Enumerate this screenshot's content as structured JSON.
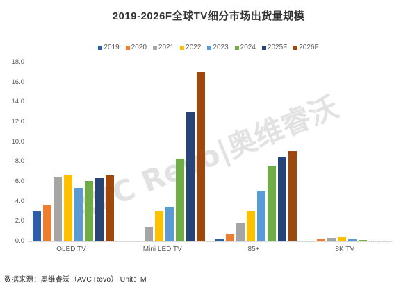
{
  "title": "2019-2026F全球TV细分市场出货量规模",
  "source": "数据来源：奥维睿沃（AVC Revo） Unit：M",
  "watermark": "AVC Revo|奥维睿沃",
  "chart_data": {
    "type": "bar",
    "title": "2019-2026F全球TV细分市场出货量规模",
    "xlabel": "",
    "ylabel": "",
    "unit": "M",
    "ylim": [
      0,
      18
    ],
    "yticks": [
      "0.0",
      "2.0",
      "4.0",
      "6.0",
      "8.0",
      "10.0",
      "12.0",
      "14.0",
      "16.0",
      "18.0"
    ],
    "grid": false,
    "legend_position": "top",
    "categories": [
      "OLED TV",
      "Mini LED TV",
      "85+",
      "8K TV"
    ],
    "series": [
      {
        "name": "2019",
        "color": "#2E5EAA",
        "values": [
          3.0,
          0,
          0.3,
          0.1
        ]
      },
      {
        "name": "2020",
        "color": "#ED7D31",
        "values": [
          3.7,
          0,
          0.8,
          0.3
        ]
      },
      {
        "name": "2021",
        "color": "#A5A5A5",
        "values": [
          6.5,
          1.5,
          1.8,
          0.35
        ]
      },
      {
        "name": "2022",
        "color": "#FFC000",
        "values": [
          6.7,
          3.0,
          3.1,
          0.4
        ]
      },
      {
        "name": "2023",
        "color": "#5B9BD5",
        "values": [
          5.4,
          3.5,
          5.0,
          0.2
        ]
      },
      {
        "name": "2024",
        "color": "#70AD47",
        "values": [
          6.1,
          8.3,
          7.6,
          0.15
        ]
      },
      {
        "name": "2025F",
        "color": "#264478",
        "values": [
          6.4,
          13.0,
          8.5,
          0.1
        ]
      },
      {
        "name": "2026F",
        "color": "#9E480E",
        "values": [
          6.6,
          17.0,
          9.1,
          0.1
        ]
      }
    ]
  }
}
